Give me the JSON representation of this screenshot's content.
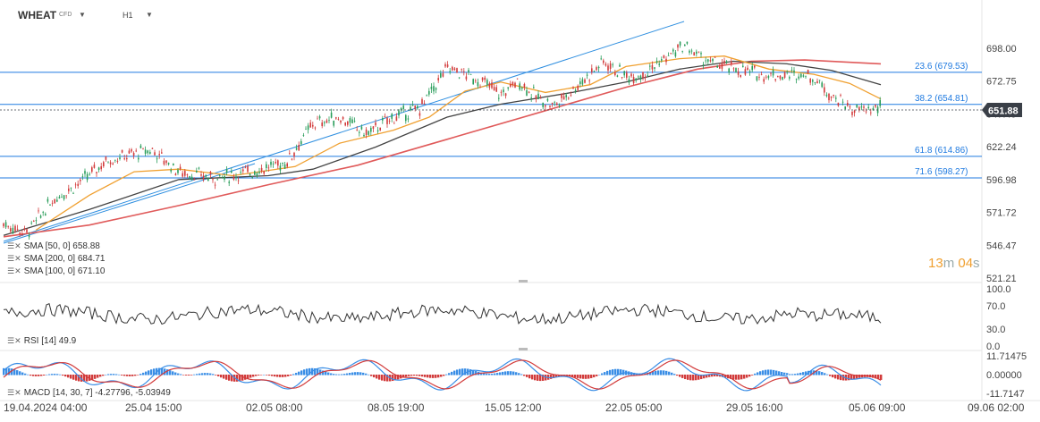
{
  "toolbar": {
    "symbol": "WHEAT",
    "instrument_type": "CFD",
    "timeframe": "H1",
    "caret": "▼"
  },
  "price_axis": {
    "ticks": [
      "698.00",
      "672.75",
      "647.49",
      "622.24",
      "596.98",
      "571.72",
      "546.47",
      "521.21"
    ],
    "current_price": "651.88",
    "current_price_color": "#3a3f47"
  },
  "fibonacci": [
    {
      "label": "23.6 (679.53)",
      "value": 679.53
    },
    {
      "label": "38.2 (654.81)",
      "value": 654.81
    },
    {
      "label": "61.8 (614.86)",
      "value": 614.86
    },
    {
      "label": "71.6 (598.27)",
      "value": 598.27
    }
  ],
  "indicators": {
    "sma50": {
      "label": "SMA [50, 0]",
      "value": "658.88",
      "color": "#f0a030"
    },
    "sma200": {
      "label": "SMA [200, 0]",
      "value": "684.71",
      "color": "#e05a5a"
    },
    "sma100": {
      "label": "SMA [100, 0]",
      "value": "671.10",
      "color": "#444444"
    },
    "rsi": {
      "label": "RSI [14]",
      "value": "49.9",
      "ticks": [
        "100.0",
        "70.0",
        "30.0",
        "0.0"
      ]
    },
    "macd": {
      "label": "MACD [14, 30, 7]",
      "value1": "-4.27796",
      "value2": "-5.03949",
      "ticks": [
        "11.71475",
        "0.00000",
        "-11.7147"
      ]
    }
  },
  "countdown": {
    "minutes": "13",
    "m": "m",
    "seconds": "04",
    "s": "s"
  },
  "time_axis": [
    "19.04.2024 04:00",
    "25.04 15:00",
    "02.05 08:00",
    "08.05 19:00",
    "15.05 12:00",
    "22.05 05:00",
    "29.05 16:00",
    "05.06 09:00",
    "09.06 02:00"
  ],
  "colors": {
    "accent_blue": "#1f7ae0",
    "candle_up": "#2a9d5b",
    "candle_down": "#d23b3b",
    "rsi_line": "#333333",
    "macd_blue": "#3a8ee6",
    "macd_red": "#d23b3b"
  },
  "icons": [
    "chevron-down-icon",
    "settings-icon",
    "close-icon"
  ]
}
